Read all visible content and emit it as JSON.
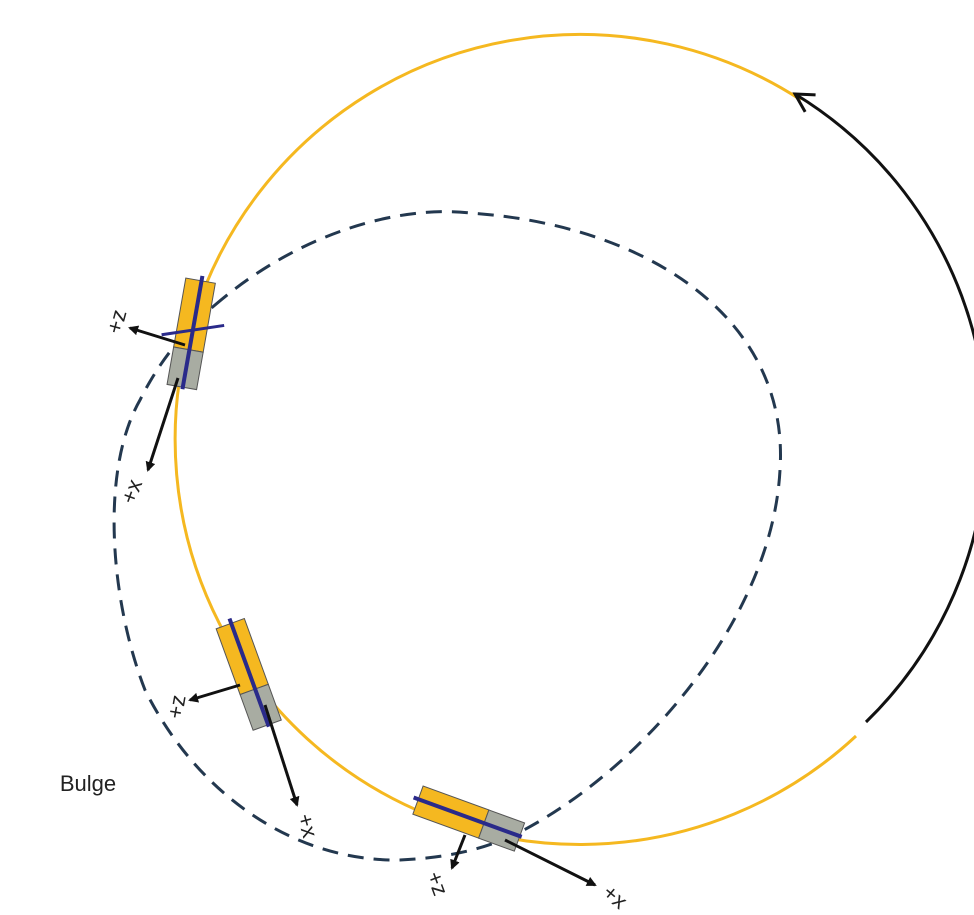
{
  "spacecraft": [
    {
      "z_label": "+z",
      "x_label": "+x"
    },
    {
      "z_label": "+z",
      "x_label": "+x"
    },
    {
      "z_label": "+z",
      "x_label": "+x"
    }
  ],
  "bulge_label": "Bulge"
}
